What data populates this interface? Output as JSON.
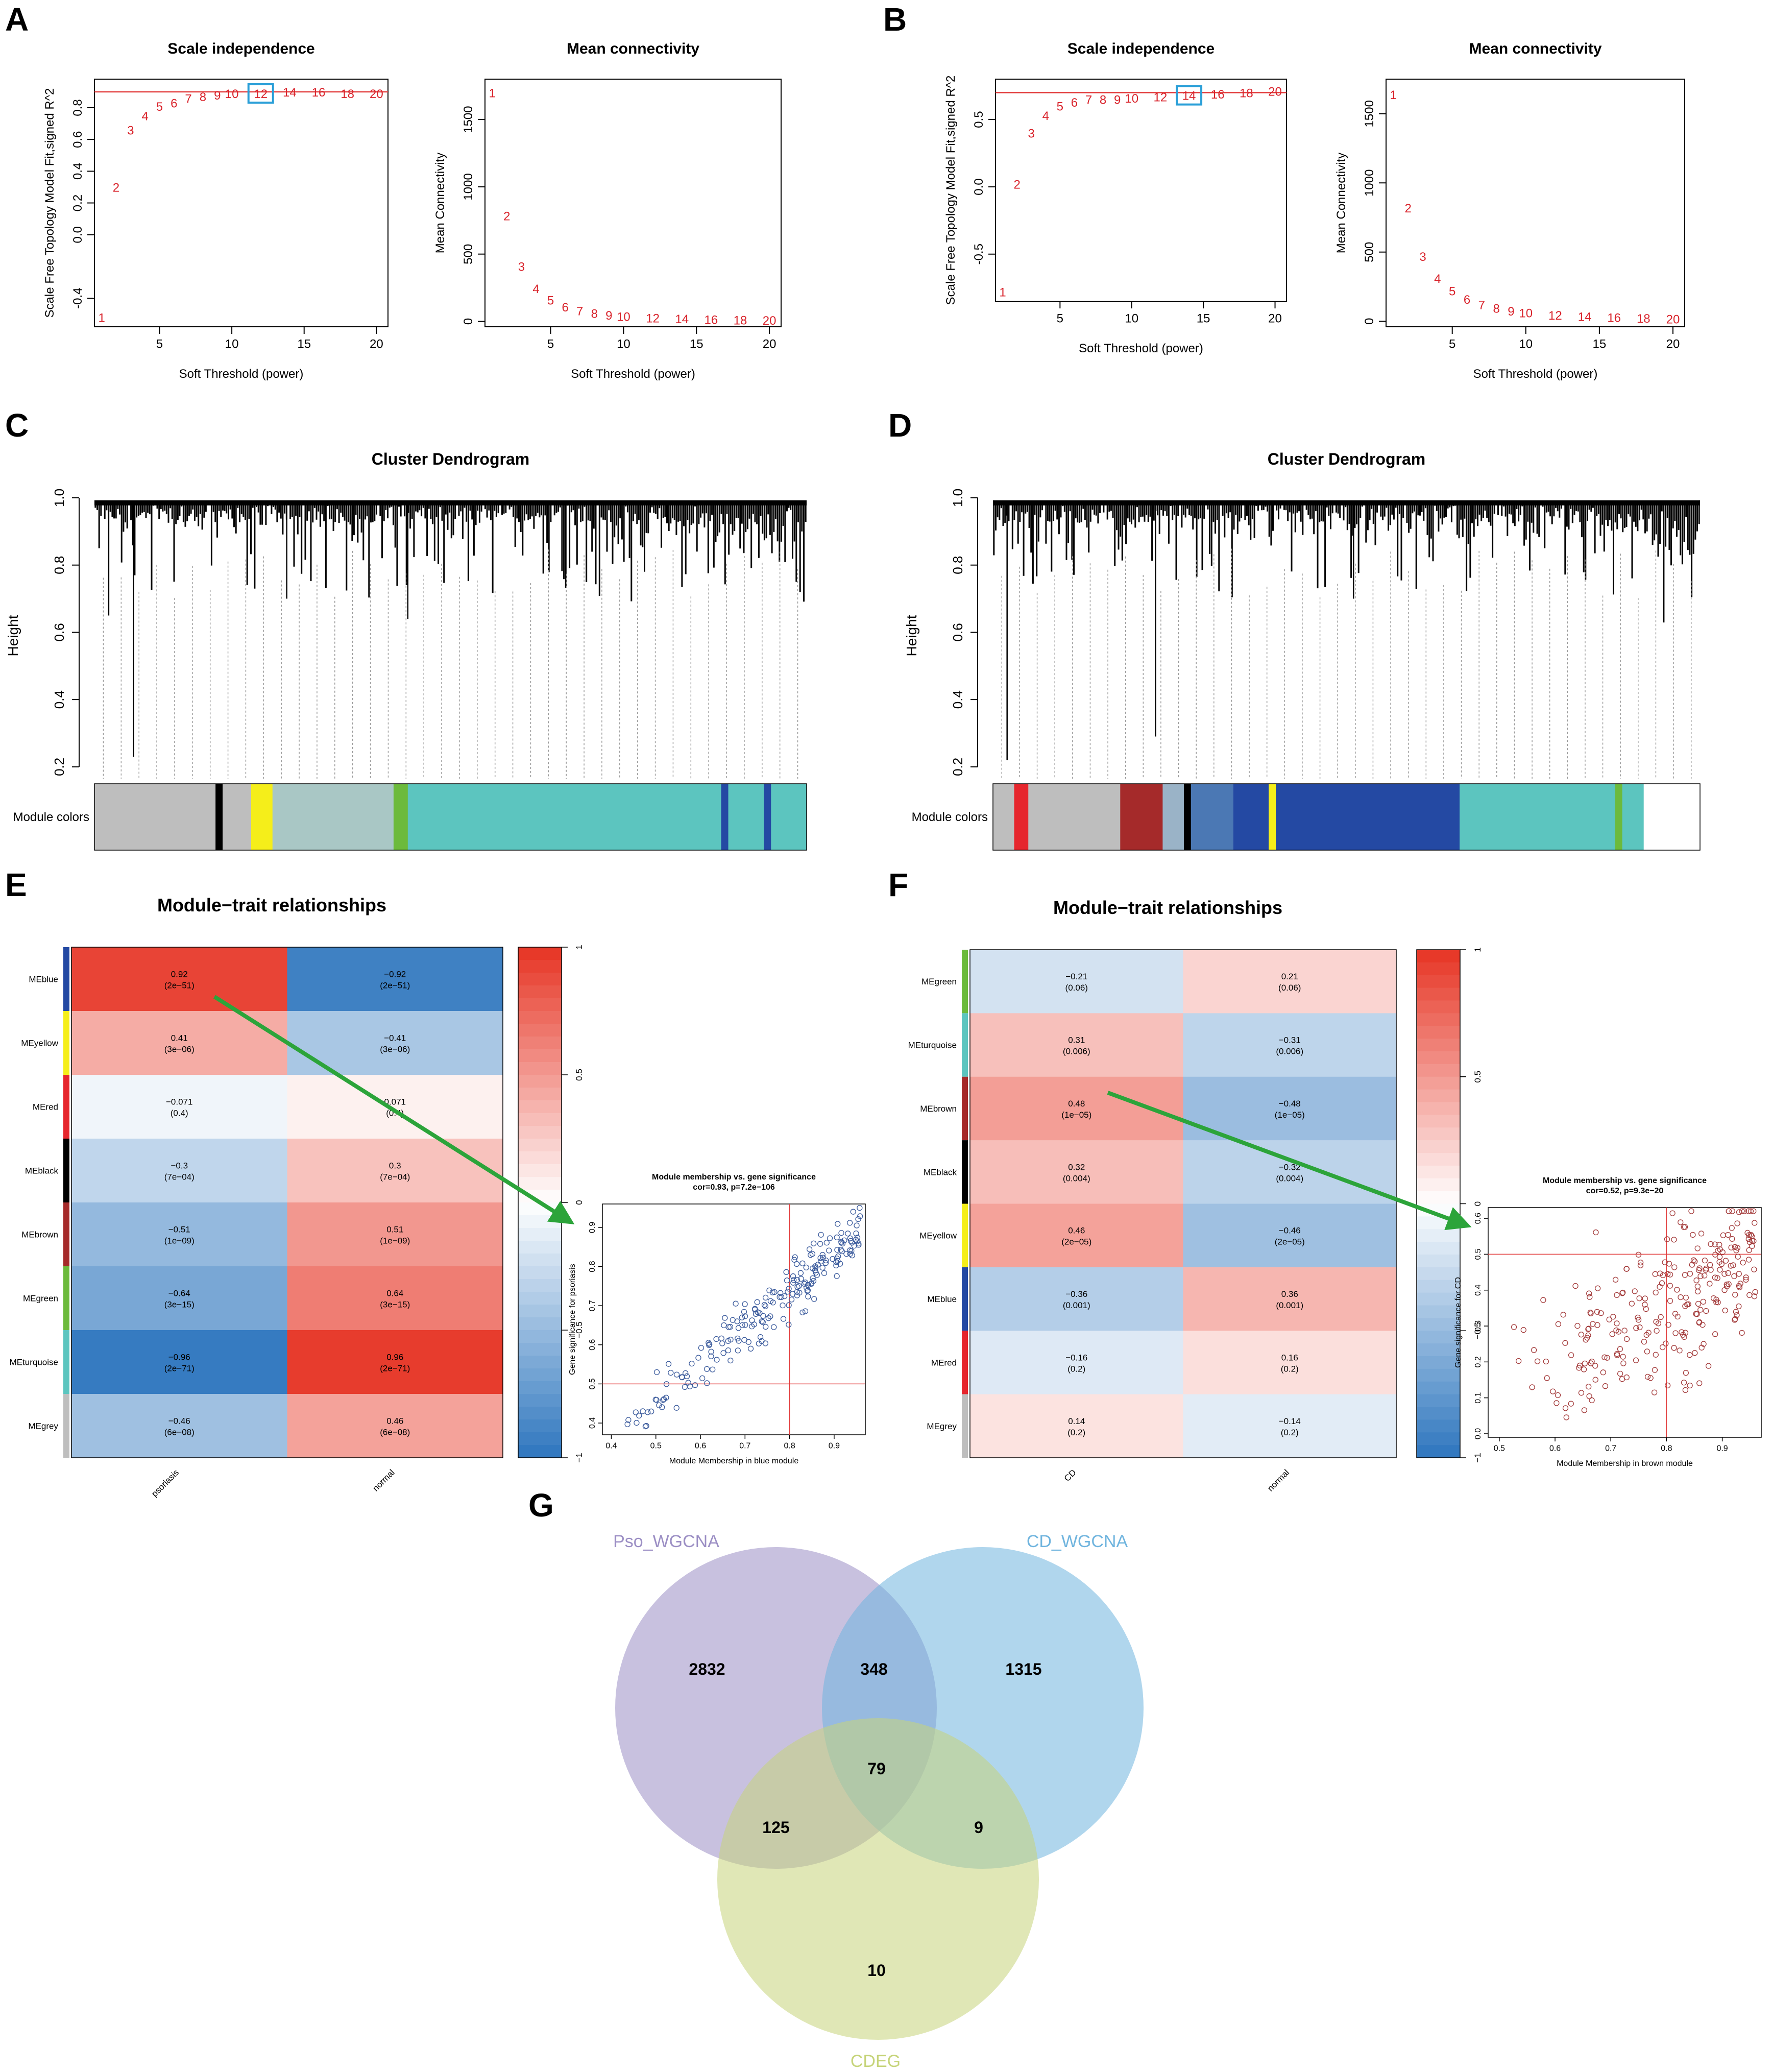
{
  "panel_labels": [
    "A",
    "B",
    "C",
    "D",
    "E",
    "F",
    "G"
  ],
  "chart_data": [
    {
      "id": "A-scale",
      "panel": "A",
      "type": "scatter",
      "title": "Scale independence",
      "xlabel": "Soft Threshold (power)",
      "ylabel": "Scale Free Topology Model Fit,signed R^2",
      "x": [
        1,
        2,
        3,
        4,
        5,
        6,
        7,
        8,
        9,
        10,
        12,
        14,
        16,
        18,
        20
      ],
      "values": [
        -0.52,
        0.3,
        0.66,
        0.75,
        0.81,
        0.83,
        0.86,
        0.87,
        0.88,
        0.89,
        0.89,
        0.9,
        0.9,
        0.89,
        0.89
      ],
      "labels": [
        "1",
        "2",
        "3",
        "4",
        "5",
        "6",
        "7",
        "8",
        "9",
        "10",
        "12",
        "14",
        "16",
        "18",
        "20"
      ],
      "xlim": [
        0.5,
        20.8
      ],
      "ylim": [
        -0.58,
        0.98
      ],
      "xticks": [
        5,
        10,
        15,
        20
      ],
      "yticks": [
        -0.4,
        0.0,
        0.2,
        0.4,
        0.6,
        0.8
      ],
      "ytick_labels": [
        "-0.4",
        "0.0",
        "0.2",
        "0.4",
        "0.6",
        "0.8"
      ],
      "hline": 0.9,
      "highlight": 10
    },
    {
      "id": "A-mean",
      "panel": "A",
      "type": "scatter",
      "title": "Mean connectivity",
      "xlabel": "Soft Threshold (power)",
      "ylabel": "Mean Connectivity",
      "x": [
        1,
        2,
        3,
        4,
        5,
        6,
        7,
        8,
        9,
        10,
        12,
        14,
        16,
        18,
        20
      ],
      "values": [
        1700,
        785,
        410,
        245,
        160,
        108,
        80,
        60,
        48,
        38,
        27,
        20,
        15,
        12,
        10
      ],
      "labels": [
        "1",
        "2",
        "3",
        "4",
        "5",
        "6",
        "7",
        "8",
        "9",
        "10",
        "12",
        "14",
        "16",
        "18",
        "20"
      ],
      "xlim": [
        0.5,
        20.8
      ],
      "ylim": [
        -40,
        1800
      ],
      "xticks": [
        5,
        10,
        15,
        20
      ],
      "yticks": [
        0,
        500,
        1000,
        1500
      ],
      "ytick_labels": [
        "0",
        "500",
        "1000",
        "1500"
      ]
    },
    {
      "id": "B-scale",
      "panel": "B",
      "type": "scatter",
      "title": "Scale independence",
      "xlabel": "Soft Threshold (power)",
      "ylabel": "Scale Free Topology Model Fit,signed R^2",
      "x": [
        1,
        2,
        3,
        4,
        5,
        6,
        7,
        8,
        9,
        10,
        12,
        14,
        16,
        18,
        20
      ],
      "values": [
        -0.78,
        0.02,
        0.4,
        0.53,
        0.6,
        0.63,
        0.65,
        0.65,
        0.65,
        0.66,
        0.67,
        0.68,
        0.69,
        0.7,
        0.71
      ],
      "labels": [
        "1",
        "2",
        "3",
        "4",
        "5",
        "6",
        "7",
        "8",
        "9",
        "10",
        "12",
        "14",
        "16",
        "18",
        "20"
      ],
      "xlim": [
        0.5,
        20.8
      ],
      "ylim": [
        -0.85,
        0.8
      ],
      "xticks": [
        5,
        10,
        15,
        20
      ],
      "yticks": [
        -0.5,
        0.0,
        0.5
      ],
      "ytick_labels": [
        "-0.5",
        "0.0",
        "0.5"
      ],
      "hline": 0.7,
      "highlight": 11
    },
    {
      "id": "B-mean",
      "panel": "B",
      "type": "scatter",
      "title": "Mean connectivity",
      "xlabel": "Soft Threshold (power)",
      "ylabel": "Mean Connectivity",
      "x": [
        1,
        2,
        3,
        4,
        5,
        6,
        7,
        8,
        9,
        10,
        12,
        14,
        16,
        18,
        20
      ],
      "values": [
        1640,
        820,
        470,
        310,
        220,
        160,
        120,
        95,
        75,
        62,
        45,
        35,
        28,
        23,
        18
      ],
      "labels": [
        "1",
        "2",
        "3",
        "4",
        "5",
        "6",
        "7",
        "8",
        "9",
        "10",
        "12",
        "14",
        "16",
        "18",
        "20"
      ],
      "xlim": [
        0.5,
        20.8
      ],
      "ylim": [
        -40,
        1750
      ],
      "xticks": [
        5,
        10,
        15,
        20
      ],
      "yticks": [
        0,
        500,
        1000,
        1500
      ],
      "ytick_labels": [
        "0",
        "500",
        "1000",
        "1500"
      ]
    },
    {
      "id": "C-dendro",
      "panel": "C",
      "type": "dendrogram",
      "title": "Cluster Dendrogram",
      "ylabel": "Height",
      "yticks": [
        0.2,
        0.4,
        0.6,
        0.8,
        1.0
      ],
      "ytick_labels": [
        "0.2",
        "0.4",
        "0.6",
        "0.8",
        "1.0"
      ],
      "ylim": [
        0.18,
        1.0
      ],
      "color_bar_label": "Module colors",
      "modules": [
        {
          "color": "#bebebe",
          "frac": 0.17
        },
        {
          "color": "#000000",
          "frac": 0.01
        },
        {
          "color": "#bebebe",
          "frac": 0.04
        },
        {
          "color": "#f5ee1a",
          "frac": 0.03
        },
        {
          "color": "#a9c7c5",
          "frac": 0.17
        },
        {
          "color": "#6cba3c",
          "frac": 0.02
        },
        {
          "color": "#5cc5bf",
          "frac": 0.44
        },
        {
          "color": "#2449a3",
          "frac": 0.01
        },
        {
          "color": "#5cc5bf",
          "frac": 0.05
        },
        {
          "color": "#2449a3",
          "frac": 0.01
        },
        {
          "color": "#5cc5bf",
          "frac": 0.05
        }
      ]
    },
    {
      "id": "D-dendro",
      "panel": "D",
      "type": "dendrogram",
      "title": "Cluster Dendrogram",
      "ylabel": "Height",
      "yticks": [
        0.2,
        0.4,
        0.6,
        0.8,
        1.0
      ],
      "ytick_labels": [
        "0.2",
        "0.4",
        "0.6",
        "0.8",
        "1.0"
      ],
      "ylim": [
        0.18,
        1.0
      ],
      "color_bar_label": "Module colors",
      "modules": [
        {
          "color": "#bebebe",
          "frac": 0.03
        },
        {
          "color": "#e6262d",
          "frac": 0.02
        },
        {
          "color": "#bebebe",
          "frac": 0.13
        },
        {
          "color": "#a52a2a",
          "frac": 0.06
        },
        {
          "color": "#9ab3c7",
          "frac": 0.03
        },
        {
          "color": "#000000",
          "frac": 0.01
        },
        {
          "color": "#4b78b4",
          "frac": 0.06
        },
        {
          "color": "#2449a3",
          "frac": 0.05
        },
        {
          "color": "#f5ee1a",
          "frac": 0.01
        },
        {
          "color": "#2449a3",
          "frac": 0.26
        },
        {
          "color": "#5cc5bf",
          "frac": 0.22
        },
        {
          "color": "#6cba3c",
          "frac": 0.01
        },
        {
          "color": "#5cc5bf",
          "frac": 0.03
        }
      ]
    },
    {
      "id": "E-heatmap",
      "panel": "E",
      "type": "heatmap",
      "title": "Module−trait relationships",
      "rows": [
        "MEblue",
        "MEyellow",
        "MEred",
        "MEblack",
        "MEbrown",
        "MEgreen",
        "MEturquoise",
        "MEgrey"
      ],
      "row_colors": [
        "#2449a3",
        "#f5ee1a",
        "#e6262d",
        "#000000",
        "#a52a2a",
        "#6cba3c",
        "#5cc5bf",
        "#bebebe"
      ],
      "columns": [
        "psoriasis",
        "normal"
      ],
      "values": [
        [
          0.92,
          -0.92
        ],
        [
          0.41,
          -0.41
        ],
        [
          -0.071,
          0.071
        ],
        [
          -0.3,
          0.3
        ],
        [
          -0.51,
          0.51
        ],
        [
          -0.64,
          0.64
        ],
        [
          -0.96,
          0.96
        ],
        [
          -0.46,
          0.46
        ]
      ],
      "value_labels": [
        [
          "0.92",
          "−0.92"
        ],
        [
          "0.41",
          "−0.41"
        ],
        [
          "−0.071",
          "0.071"
        ],
        [
          "−0.3",
          "0.3"
        ],
        [
          "−0.51",
          "0.51"
        ],
        [
          "−0.64",
          "0.64"
        ],
        [
          "−0.96",
          "0.96"
        ],
        [
          "−0.46",
          "0.46"
        ]
      ],
      "pvalues": [
        [
          "(2e−51)",
          "(2e−51)"
        ],
        [
          "(3e−06)",
          "(3e−06)"
        ],
        [
          "(0.4)",
          "(0.4)"
        ],
        [
          "(7e−04)",
          "(7e−04)"
        ],
        [
          "(1e−09)",
          "(1e−09)"
        ],
        [
          "(3e−15)",
          "(3e−15)"
        ],
        [
          "(2e−71)",
          "(2e−71)"
        ],
        [
          "(6e−08)",
          "(6e−08)"
        ]
      ],
      "legend_ticks": [
        "1",
        "0.5",
        "0",
        "−0.5",
        "−1"
      ]
    },
    {
      "id": "E-scatter",
      "panel": "E",
      "type": "scatter",
      "title": "Module membership vs. gene significance",
      "subtitle": "cor=0.93, p=7.2e−106",
      "xlabel": "Module Membership in blue module",
      "ylabel": "Gene significance for  psoriasis",
      "point_color": "#3a5a9c",
      "n_points": 210,
      "trend": {
        "slope": 0.95,
        "intercept": -0.02,
        "sd": 0.035,
        "xmin": 0.4,
        "xmax": 0.96
      },
      "xlim": [
        0.38,
        0.97
      ],
      "ylim": [
        0.37,
        0.96
      ],
      "xticks": [
        0.4,
        0.5,
        0.6,
        0.7,
        0.8,
        0.9
      ],
      "xtick_labels": [
        "0.4",
        "0.5",
        "0.6",
        "0.7",
        "0.8",
        "0.9"
      ],
      "yticks": [
        0.4,
        0.5,
        0.6,
        0.7,
        0.8,
        0.9
      ],
      "ytick_labels": [
        "0.4",
        "0.5",
        "0.6",
        "0.7",
        "0.8",
        "0.9"
      ],
      "vline": 0.8,
      "hline": 0.5
    },
    {
      "id": "F-heatmap",
      "panel": "F",
      "type": "heatmap",
      "title": "Module−trait relationships",
      "rows": [
        "MEgreen",
        "MEturquoise",
        "MEbrown",
        "MEblack",
        "MEyellow",
        "MEblue",
        "MEred",
        "MEgrey"
      ],
      "row_colors": [
        "#6cba3c",
        "#5cc5bf",
        "#a52a2a",
        "#000000",
        "#f5ee1a",
        "#2449a3",
        "#e6262d",
        "#bebebe"
      ],
      "columns": [
        "CD",
        "normal"
      ],
      "values": [
        [
          -0.21,
          0.21
        ],
        [
          0.31,
          -0.31
        ],
        [
          0.48,
          -0.48
        ],
        [
          0.32,
          -0.32
        ],
        [
          0.46,
          -0.46
        ],
        [
          -0.36,
          0.36
        ],
        [
          -0.16,
          0.16
        ],
        [
          0.14,
          -0.14
        ]
      ],
      "value_labels": [
        [
          "−0.21",
          "0.21"
        ],
        [
          "0.31",
          "−0.31"
        ],
        [
          "0.48",
          "−0.48"
        ],
        [
          "0.32",
          "−0.32"
        ],
        [
          "0.46",
          "−0.46"
        ],
        [
          "−0.36",
          "0.36"
        ],
        [
          "−0.16",
          "0.16"
        ],
        [
          "0.14",
          "−0.14"
        ]
      ],
      "pvalues": [
        [
          "(0.06)",
          "(0.06)"
        ],
        [
          "(0.006)",
          "(0.006)"
        ],
        [
          "(1e−05)",
          "(1e−05)"
        ],
        [
          "(0.004)",
          "(0.004)"
        ],
        [
          "(2e−05)",
          "(2e−05)"
        ],
        [
          "(0.001)",
          "(0.001)"
        ],
        [
          "(0.2)",
          "(0.2)"
        ],
        [
          "(0.2)",
          "(0.2)"
        ]
      ],
      "legend_ticks": [
        "1",
        "0.5",
        "0",
        "−0.5",
        "−1"
      ]
    },
    {
      "id": "F-scatter",
      "panel": "F",
      "type": "scatter",
      "title": "Module membership vs. gene significance",
      "subtitle": "cor=0.52, p=9.3e−20",
      "xlabel": "Module Membership in brown module",
      "ylabel": "Gene significance for  CD",
      "point_color": "#a33a3a",
      "n_points": 260,
      "trend": {
        "slope": 0.9,
        "intercept": -0.35,
        "sd": 0.12,
        "xmin": 0.5,
        "xmax": 0.96
      },
      "xlim": [
        0.48,
        0.97
      ],
      "ylim": [
        -0.01,
        0.63
      ],
      "xticks": [
        0.5,
        0.6,
        0.7,
        0.8,
        0.9
      ],
      "xtick_labels": [
        "0.5",
        "0.6",
        "0.7",
        "0.8",
        "0.9"
      ],
      "yticks": [
        0.0,
        0.1,
        0.2,
        0.3,
        0.4,
        0.5,
        0.6
      ],
      "ytick_labels": [
        "0.0",
        "0.1",
        "0.2",
        "0.3",
        "0.4",
        "0.5",
        "0.6"
      ],
      "vline": 0.8,
      "hline": 0.5
    },
    {
      "id": "G-venn",
      "panel": "G",
      "type": "venn",
      "sets": [
        {
          "name": "Pso_WGCNA",
          "color": "#9b8ec4"
        },
        {
          "name": "CD_WGCNA",
          "color": "#6fb4de"
        },
        {
          "name": "CDEG",
          "color": "#c6d47a"
        }
      ],
      "regions": [
        {
          "key": "pso_only",
          "label": "2832"
        },
        {
          "key": "pso_cd",
          "label": "348"
        },
        {
          "key": "cd_only",
          "label": "1315"
        },
        {
          "key": "all",
          "label": "79"
        },
        {
          "key": "pso_cdeg",
          "label": "125"
        },
        {
          "key": "cd_cdeg",
          "label": "9"
        },
        {
          "key": "cdeg_only",
          "label": "10"
        }
      ]
    }
  ],
  "colors": {
    "red_label": "#d9232b",
    "threshold_line": "#e23b3b",
    "highlight_box": "#2a9fd8",
    "arrow": "#2ca43a"
  }
}
